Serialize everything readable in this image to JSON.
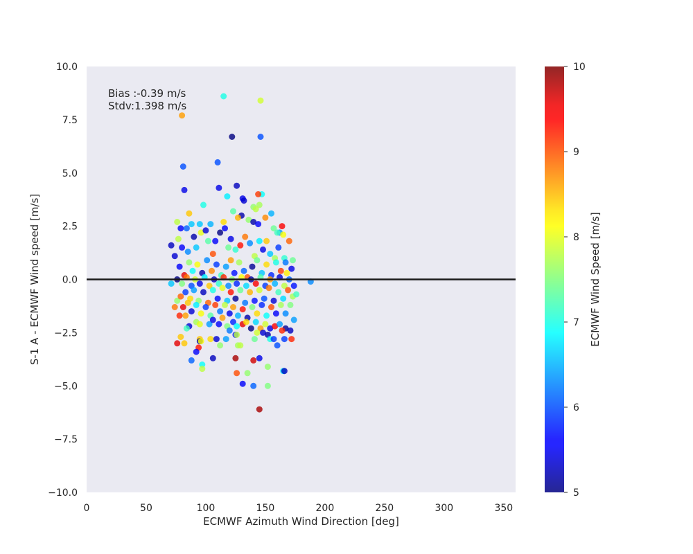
{
  "chart_data": {
    "type": "scatter",
    "title": "",
    "xlabel": "ECMWF Azimuth Wind Direction [deg]",
    "ylabel": "S-1 A - ECMWF Wind speed [m/s]",
    "xlim": [
      0,
      360
    ],
    "ylim": [
      -10,
      10
    ],
    "x_ticks": [
      0,
      50,
      100,
      150,
      200,
      250,
      300,
      350
    ],
    "y_ticks": [
      -10.0,
      -7.5,
      -5.0,
      -2.5,
      0.0,
      2.5,
      5.0,
      7.5,
      10.0
    ],
    "x_tick_labels": [
      "0",
      "50",
      "100",
      "150",
      "200",
      "250",
      "300",
      "350"
    ],
    "y_tick_labels": [
      "−10.0",
      "−7.5",
      "−5.0",
      "−2.5",
      "0.0",
      "2.5",
      "5.0",
      "7.5",
      "10.0"
    ],
    "reference_line_y": 0,
    "background": "#eaeaf2",
    "grid": false,
    "annotation": {
      "line1": "Bias :-0.39 m/s",
      "line2": "Stdv:1.398 m/s",
      "position": "top-left"
    },
    "colorbar": {
      "label": "ECMWF Wind Speed [m/s]",
      "colormap": "jet",
      "range": [
        5,
        10
      ],
      "ticks": [
        5,
        6,
        7,
        8,
        9,
        10
      ],
      "tick_labels": [
        "5",
        "6",
        "7",
        "8",
        "9",
        "10"
      ]
    },
    "points": [
      [
        80,
        7.7,
        8.6
      ],
      [
        115,
        8.6,
        7.0
      ],
      [
        146,
        8.4,
        7.9
      ],
      [
        122,
        6.7,
        5.0
      ],
      [
        146,
        6.7,
        6.0
      ],
      [
        110,
        5.5,
        6.0
      ],
      [
        81,
        5.3,
        6.0
      ],
      [
        82,
        4.2,
        5.5
      ],
      [
        111,
        4.3,
        5.5
      ],
      [
        126,
        4.4,
        5.3
      ],
      [
        147,
        4.0,
        6.9
      ],
      [
        144,
        4.0,
        9.1
      ],
      [
        118,
        3.9,
        6.8
      ],
      [
        131,
        3.8,
        5.5
      ],
      [
        132,
        3.7,
        5.4
      ],
      [
        145,
        3.5,
        7.7
      ],
      [
        140,
        3.4,
        7.6
      ],
      [
        142,
        3.3,
        7.8
      ],
      [
        98,
        3.5,
        7.0
      ],
      [
        86,
        3.1,
        8.4
      ],
      [
        123,
        3.2,
        7.3
      ],
      [
        155,
        3.1,
        6.5
      ],
      [
        150,
        2.9,
        8.7
      ],
      [
        130,
        3.0,
        5.2
      ],
      [
        136,
        2.8,
        7.6
      ],
      [
        162,
        2.2,
        6.4
      ],
      [
        164,
        2.5,
        9.4
      ],
      [
        157,
        2.4,
        7.4
      ],
      [
        79,
        2.4,
        5.6
      ],
      [
        76,
        2.7,
        7.8
      ],
      [
        88,
        2.6,
        6.6
      ],
      [
        95,
        2.6,
        6.6
      ],
      [
        104,
        2.6,
        6.5
      ],
      [
        115,
        2.7,
        8.3
      ],
      [
        127,
        2.9,
        8.5
      ],
      [
        140,
        2.7,
        5.2
      ],
      [
        144,
        2.6,
        5.6
      ],
      [
        160,
        2.2,
        7.2
      ],
      [
        165,
        2.1,
        8.1
      ],
      [
        71,
        1.6,
        5.3
      ],
      [
        74,
        1.1,
        5.4
      ],
      [
        77,
        1.9,
        7.8
      ],
      [
        80,
        1.5,
        5.6
      ],
      [
        84,
        2.4,
        6.1
      ],
      [
        85,
        1.3,
        6.3
      ],
      [
        90,
        2.0,
        5.2
      ],
      [
        92,
        1.5,
        6.6
      ],
      [
        96,
        2.2,
        8.0
      ],
      [
        100,
        2.3,
        5.4
      ],
      [
        102,
        1.8,
        7.3
      ],
      [
        106,
        1.2,
        9.0
      ],
      [
        108,
        1.8,
        5.6
      ],
      [
        112,
        2.2,
        5.0
      ],
      [
        116,
        2.4,
        5.6
      ],
      [
        119,
        1.5,
        7.4
      ],
      [
        121,
        1.9,
        5.5
      ],
      [
        125,
        1.4,
        7.1
      ],
      [
        129,
        1.6,
        9.3
      ],
      [
        133,
        2.0,
        8.8
      ],
      [
        137,
        1.7,
        6.3
      ],
      [
        141,
        1.1,
        7.8
      ],
      [
        145,
        1.8,
        6.8
      ],
      [
        148,
        1.4,
        5.5
      ],
      [
        151,
        1.8,
        8.4
      ],
      [
        154,
        1.2,
        6.6
      ],
      [
        158,
        1.0,
        7.7
      ],
      [
        161,
        1.5,
        5.9
      ],
      [
        166,
        1.0,
        7.1
      ],
      [
        170,
        1.8,
        8.9
      ],
      [
        173,
        0.9,
        7.4
      ],
      [
        172,
        0.5,
        5.5
      ],
      [
        168,
        0.3,
        8.2
      ],
      [
        78,
        0.6,
        5.6
      ],
      [
        82,
        0.2,
        9.5
      ],
      [
        86,
        0.8,
        7.6
      ],
      [
        89,
        0.4,
        6.9
      ],
      [
        93,
        0.7,
        8.1
      ],
      [
        97,
        0.3,
        5.2
      ],
      [
        101,
        0.9,
        6.3
      ],
      [
        105,
        0.4,
        8.7
      ],
      [
        109,
        0.7,
        5.9
      ],
      [
        113,
        0.2,
        7.2
      ],
      [
        117,
        0.6,
        6.4
      ],
      [
        121,
        0.9,
        8.6
      ],
      [
        124,
        0.3,
        5.7
      ],
      [
        128,
        0.8,
        7.7
      ],
      [
        132,
        0.4,
        6.1
      ],
      [
        135,
        0.1,
        9.0
      ],
      [
        139,
        0.6,
        5.1
      ],
      [
        143,
        0.9,
        7.4
      ],
      [
        147,
        0.3,
        6.6
      ],
      [
        151,
        0.7,
        8.3
      ],
      [
        155,
        0.2,
        5.8
      ],
      [
        159,
        0.8,
        7.0
      ],
      [
        163,
        0.4,
        9.1
      ],
      [
        167,
        0.8,
        6.2
      ],
      [
        76,
        0.0,
        5.0
      ],
      [
        80,
        -0.2,
        7.5
      ],
      [
        84,
        0.1,
        8.8
      ],
      [
        88,
        -0.3,
        6.0
      ],
      [
        91,
        0.0,
        7.9
      ],
      [
        95,
        -0.2,
        5.5
      ],
      [
        99,
        0.1,
        6.8
      ],
      [
        103,
        -0.3,
        8.4
      ],
      [
        107,
        0.0,
        5.3
      ],
      [
        111,
        -0.2,
        7.1
      ],
      [
        115,
        0.1,
        9.2
      ],
      [
        119,
        -0.3,
        6.3
      ],
      [
        122,
        0.0,
        7.6
      ],
      [
        126,
        -0.2,
        5.8
      ],
      [
        130,
        0.1,
        8.1
      ],
      [
        134,
        -0.3,
        6.7
      ],
      [
        138,
        0.0,
        5.2
      ],
      [
        142,
        -0.2,
        9.4
      ],
      [
        146,
        0.1,
        7.3
      ],
      [
        150,
        -0.3,
        5.9
      ],
      [
        154,
        0.0,
        8.6
      ],
      [
        158,
        -0.2,
        6.5
      ],
      [
        162,
        0.1,
        5.4
      ],
      [
        166,
        -0.3,
        7.8
      ],
      [
        170,
        0.0,
        6.1
      ],
      [
        174,
        -0.3,
        5.7
      ],
      [
        188,
        -0.1,
        6.3
      ],
      [
        71,
        -0.2,
        6.6
      ],
      [
        83,
        -0.6,
        5.9
      ],
      [
        87,
        -0.9,
        8.3
      ],
      [
        90,
        -0.5,
        6.4
      ],
      [
        94,
        -1.0,
        7.6
      ],
      [
        98,
        -0.6,
        5.3
      ],
      [
        102,
        -1.1,
        8.9
      ],
      [
        106,
        -0.5,
        7.0
      ],
      [
        110,
        -0.9,
        5.6
      ],
      [
        114,
        -0.4,
        8.0
      ],
      [
        118,
        -1.0,
        6.6
      ],
      [
        121,
        -0.6,
        9.3
      ],
      [
        125,
        -0.9,
        5.1
      ],
      [
        129,
        -0.5,
        7.4
      ],
      [
        133,
        -1.1,
        6.2
      ],
      [
        137,
        -0.6,
        8.5
      ],
      [
        141,
        -1.0,
        5.7
      ],
      [
        145,
        -0.5,
        7.9
      ],
      [
        149,
        -0.9,
        6.0
      ],
      [
        153,
        -0.4,
        8.8
      ],
      [
        157,
        -1.0,
        5.4
      ],
      [
        161,
        -0.6,
        7.2
      ],
      [
        165,
        -0.9,
        6.7
      ],
      [
        169,
        -0.5,
        9.0
      ],
      [
        173,
        -0.8,
        7.7
      ],
      [
        176,
        -0.7,
        7.2
      ],
      [
        76,
        -1.0,
        7.6
      ],
      [
        79,
        -0.8,
        8.9
      ],
      [
        81,
        -1.3,
        9.5
      ],
      [
        85,
        -1.1,
        8.4
      ],
      [
        88,
        -1.5,
        5.4
      ],
      [
        92,
        -1.2,
        6.8
      ],
      [
        96,
        -1.6,
        8.1
      ],
      [
        100,
        -1.3,
        5.9
      ],
      [
        104,
        -1.7,
        7.3
      ],
      [
        108,
        -1.2,
        9.1
      ],
      [
        112,
        -1.5,
        6.2
      ],
      [
        116,
        -1.2,
        7.8
      ],
      [
        120,
        -1.6,
        5.5
      ],
      [
        123,
        -1.3,
        8.6
      ],
      [
        127,
        -1.7,
        6.5
      ],
      [
        131,
        -1.4,
        9.3
      ],
      [
        135,
        -1.8,
        5.2
      ],
      [
        139,
        -1.3,
        7.5
      ],
      [
        143,
        -1.6,
        8.3
      ],
      [
        147,
        -1.2,
        5.8
      ],
      [
        151,
        -1.7,
        6.9
      ],
      [
        155,
        -1.3,
        9.0
      ],
      [
        159,
        -1.6,
        5.6
      ],
      [
        163,
        -1.2,
        7.7
      ],
      [
        167,
        -1.6,
        6.3
      ],
      [
        171,
        -1.2,
        7.5
      ],
      [
        174,
        -1.9,
        6.4
      ],
      [
        74,
        -1.3,
        8.8
      ],
      [
        78,
        -1.7,
        9.2
      ],
      [
        83,
        -1.7,
        8.6
      ],
      [
        86,
        -2.2,
        5.4
      ],
      [
        92,
        -2.0,
        7.7
      ],
      [
        95,
        -2.1,
        8.0
      ],
      [
        103,
        -2.1,
        6.4
      ],
      [
        106,
        -1.9,
        5.5
      ],
      [
        111,
        -2.1,
        5.6
      ],
      [
        114,
        -1.8,
        8.6
      ],
      [
        118,
        -2.2,
        7.5
      ],
      [
        123,
        -2.0,
        5.8
      ],
      [
        126,
        -2.2,
        6.9
      ],
      [
        131,
        -2.1,
        9.5
      ],
      [
        134,
        -2.0,
        8.3
      ],
      [
        138,
        -2.3,
        5.0
      ],
      [
        142,
        -2.0,
        6.7
      ],
      [
        146,
        -2.3,
        8.6
      ],
      [
        150,
        -2.1,
        7.9
      ],
      [
        154,
        -2.3,
        5.5
      ],
      [
        158,
        -2.2,
        9.4
      ],
      [
        162,
        -2.1,
        6.4
      ],
      [
        167,
        -2.3,
        5.1
      ],
      [
        171,
        -2.4,
        5.3
      ],
      [
        84,
        -2.3,
        7.2
      ],
      [
        95,
        -2.8,
        8.4
      ],
      [
        95,
        -2.9,
        5.2
      ],
      [
        94,
        -3.2,
        9.3
      ],
      [
        96,
        -2.9,
        8.1
      ],
      [
        104,
        -2.8,
        8.3
      ],
      [
        109,
        -2.8,
        5.4
      ],
      [
        112,
        -3.1,
        7.6
      ],
      [
        117,
        -2.8,
        6.4
      ],
      [
        120,
        -2.4,
        6.2
      ],
      [
        125,
        -2.6,
        5.7
      ],
      [
        126,
        -2.6,
        7.8
      ],
      [
        127,
        -3.1,
        7.7
      ],
      [
        141,
        -2.8,
        7.4
      ],
      [
        143,
        -2.5,
        7.9
      ],
      [
        148,
        -2.5,
        5.4
      ],
      [
        152,
        -2.6,
        5.2
      ],
      [
        154,
        -2.8,
        7.0
      ],
      [
        157,
        -2.8,
        5.9
      ],
      [
        160,
        -3.1,
        6.0
      ],
      [
        164,
        -2.4,
        9.2
      ],
      [
        166,
        -2.8,
        5.9
      ],
      [
        172,
        -2.8,
        9.2
      ],
      [
        79,
        -2.7,
        8.4
      ],
      [
        76,
        -3.0,
        9.5
      ],
      [
        82,
        -3.0,
        8.4
      ],
      [
        92,
        -3.4,
        5.6
      ],
      [
        88,
        -3.8,
        6.1
      ],
      [
        97,
        -4.0,
        6.9
      ],
      [
        97,
        -4.2,
        7.8
      ],
      [
        106,
        -3.7,
        5.3
      ],
      [
        125,
        -3.7,
        9.8
      ],
      [
        129,
        -3.1,
        7.8
      ],
      [
        140,
        -3.8,
        9.6
      ],
      [
        145,
        -3.7,
        5.5
      ],
      [
        152,
        -4.1,
        7.6
      ],
      [
        165,
        -4.3,
        6.8
      ],
      [
        166,
        -4.3,
        5.3
      ],
      [
        135,
        -4.4,
        7.6
      ],
      [
        126,
        -4.4,
        9.0
      ],
      [
        131,
        -4.9,
        5.6
      ],
      [
        140,
        -5.0,
        6.1
      ],
      [
        152,
        -5.0,
        7.5
      ],
      [
        145,
        -6.1,
        9.8
      ]
    ]
  }
}
